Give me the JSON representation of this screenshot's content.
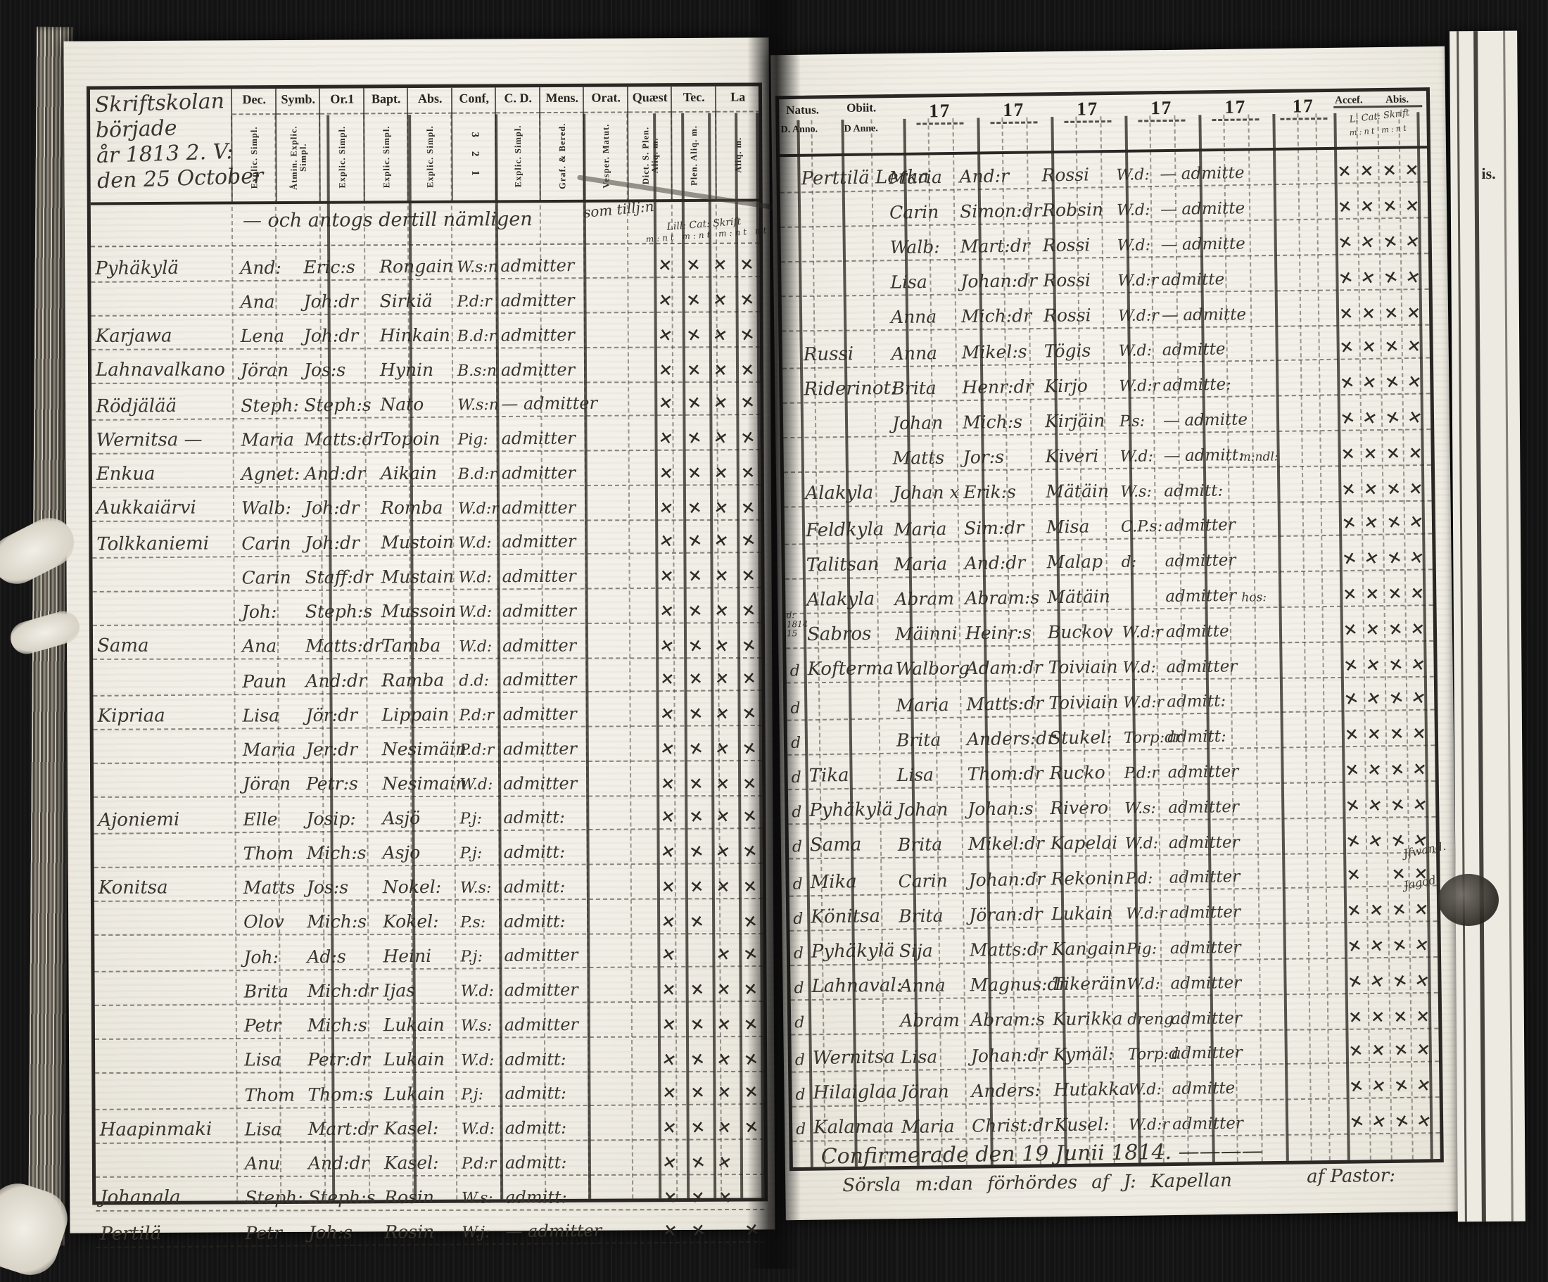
{
  "scan": {
    "background_color": "#131313",
    "paper_color": "#f3f1e9",
    "ink_color": "#39352e",
    "print_color": "#262320"
  },
  "left_page": {
    "margin_title": [
      "Skriftskolan",
      "började",
      "år 1813 2. V:",
      "den 25 October"
    ],
    "intro_line": "— och antogs dertill nämligen",
    "intro_note": "som tillj:n",
    "marks_caption_line1": "Lill: Cat: Skrift",
    "marks_caption_line2": "m:nt  m:nt  m:nt  nt",
    "columns": [
      {
        "label": "Dec.",
        "sub": "Explic. Simpl."
      },
      {
        "label": "Symb.",
        "sub": "Åtmin. Explic. Simpl."
      },
      {
        "label": "Or.1",
        "sub": "Explic. Simpl."
      },
      {
        "label": "Bapt.",
        "sub": "Explic. Simpl."
      },
      {
        "label": "Abs.",
        "sub": "Explic. Simpl."
      },
      {
        "label": "Conf,",
        "sub": "3 2 1"
      },
      {
        "label": "C. D.",
        "sub": "Explic. Simpl."
      },
      {
        "label": "Mens.",
        "sub": "Graf. & Bered."
      },
      {
        "label": "Orat.",
        "sub": "Vesper. Matut."
      },
      {
        "label": "Quæst",
        "sub": "Dict. S. Plen. Aliq. m."
      },
      {
        "label": "Tec.",
        "sub": "Plen. Aliq. m."
      },
      {
        "label": "La",
        "sub": "Aliq. m."
      }
    ],
    "rows": [
      {
        "place": "Pyhäkylä",
        "first": "And:",
        "patron": "Eric:s",
        "surname": "Rongain",
        "status": "W.s:n",
        "admitted": "admitter",
        "marks": [
          "×",
          "×",
          "×",
          "×"
        ]
      },
      {
        "place": "",
        "first": "Ana",
        "patron": "Joh:dr",
        "surname": "Sirkiä",
        "status": "P.d:r",
        "admitted": "admitter",
        "marks": [
          "×",
          "×",
          "×",
          "×"
        ]
      },
      {
        "place": "Karjawa",
        "first": "Lena",
        "patron": "Joh:dr",
        "surname": "Hinkain",
        "status": "B.d:r",
        "admitted": "admitter",
        "marks": [
          "×",
          "×",
          "×",
          "×"
        ]
      },
      {
        "place": "Lahnavalkano",
        "first": "Jöran",
        "patron": "Jos:s",
        "surname": "Hynin",
        "status": "B.s:n",
        "admitted": "admitter",
        "marks": [
          "×",
          "×",
          "×",
          "×"
        ]
      },
      {
        "place": "Rödjälää",
        "first": "Steph:",
        "patron": "Steph:s",
        "surname": "Nato",
        "status": "W.s:n",
        "admitted": "— admitter",
        "marks": [
          "×",
          "×",
          "×",
          "×"
        ]
      },
      {
        "place": "Wernitsa —",
        "first": "Maria",
        "patron": "Matts:dr",
        "surname": "Topoin",
        "status": "Pig:",
        "admitted": "admitter",
        "marks": [
          "×",
          "×",
          "×",
          "×"
        ]
      },
      {
        "place": "Enkua",
        "first": "Agnet:",
        "patron": "And:dr",
        "surname": "Aikain",
        "status": "B.d:r",
        "admitted": "admitter",
        "marks": [
          "×",
          "×",
          "×",
          "×"
        ]
      },
      {
        "place": "Aukkaiärvi",
        "first": "Walb:",
        "patron": "Joh:dr",
        "surname": "Romba",
        "status": "W.d:r",
        "admitted": "admitter",
        "marks": [
          "×",
          "×",
          "×",
          "×"
        ]
      },
      {
        "place": "Tolkkaniemi",
        "first": "Carin",
        "patron": "Joh:dr",
        "surname": "Mustoin",
        "status": "W.d:",
        "admitted": "admitter",
        "marks": [
          "×",
          "×",
          "×",
          "×"
        ]
      },
      {
        "place": "",
        "first": "Carin",
        "patron": "Staff:dr",
        "surname": "Mustain",
        "status": "W.d:",
        "admitted": "admitter",
        "marks": [
          "×",
          "×",
          "×",
          "×"
        ]
      },
      {
        "place": "",
        "first": "Joh:",
        "patron": "Steph:s",
        "surname": "Mussoin",
        "status": "W.d:",
        "admitted": "admitter",
        "marks": [
          "×",
          "×",
          "×",
          "×"
        ]
      },
      {
        "place": "Sama",
        "first": "Ana",
        "patron": "Matts:dr",
        "surname": "Tamba",
        "status": "W.d:",
        "admitted": "admitter",
        "marks": [
          "×",
          "×",
          "×",
          "×"
        ]
      },
      {
        "place": "",
        "first": "Paun",
        "patron": "And:dr",
        "surname": "Ramba",
        "status": "d.d:",
        "admitted": "admitter",
        "marks": [
          "×",
          "×",
          "×",
          "×"
        ]
      },
      {
        "place": "Kipriaa",
        "first": "Lisa",
        "patron": "Jör:dr",
        "surname": "Lippain",
        "status": "P.d:r",
        "admitted": "admitter",
        "marks": [
          "×",
          "×",
          "×",
          "×"
        ]
      },
      {
        "place": "",
        "first": "Maria",
        "patron": "Jer:dr",
        "surname": "Nesimäin",
        "status": "P.d:r",
        "admitted": "admitter",
        "marks": [
          "×",
          "×",
          "×",
          "×"
        ]
      },
      {
        "place": "",
        "first": "Jöran",
        "patron": "Petr:s",
        "surname": "Nesimain",
        "status": "W.d:",
        "admitted": "admitter",
        "marks": [
          "×",
          "×",
          "×",
          "×"
        ]
      },
      {
        "place": "Ajoniemi",
        "first": "Elle",
        "patron": "Josip:",
        "surname": "Asjö",
        "status": "P.j:",
        "admitted": "admitt:",
        "marks": [
          "×",
          "×",
          "×",
          "×"
        ]
      },
      {
        "place": "",
        "first": "Thom",
        "patron": "Mich:s",
        "surname": "Asjo",
        "status": "P.j:",
        "admitted": "admitt:",
        "marks": [
          "×",
          "×",
          "×",
          "×"
        ]
      },
      {
        "place": "Konitsa",
        "first": "Matts",
        "patron": "Jos:s",
        "surname": "Nokel:",
        "status": "W.s:",
        "admitted": "admitt:",
        "marks": [
          "×",
          "×",
          "×",
          "×"
        ]
      },
      {
        "place": "",
        "first": "Olov",
        "patron": "Mich:s",
        "surname": "Kokel:",
        "status": "P.s:",
        "admitted": "admitt:",
        "marks": [
          "×",
          "×",
          "",
          "×"
        ]
      },
      {
        "place": "",
        "first": "Joh:",
        "patron": "Ad:s",
        "surname": "Heini",
        "status": "P.j:",
        "admitted": "admitter",
        "marks": [
          "×",
          "",
          "×",
          "×"
        ]
      },
      {
        "place": "",
        "first": "Brita",
        "patron": "Mich:dr",
        "surname": "Ijas",
        "status": "W.d:",
        "admitted": "admitter",
        "marks": [
          "×",
          "×",
          "×",
          "×"
        ]
      },
      {
        "place": "",
        "first": "Petr",
        "patron": "Mich:s",
        "surname": "Lukain",
        "status": "W.s:",
        "admitted": "admitter",
        "marks": [
          "×",
          "×",
          "×",
          "×"
        ]
      },
      {
        "place": "",
        "first": "Lisa",
        "patron": "Petr:dr",
        "surname": "Lukain",
        "status": "W.d:",
        "admitted": "admitt:",
        "marks": [
          "×",
          "×",
          "×",
          "×"
        ]
      },
      {
        "place": "",
        "first": "Thom",
        "patron": "Thom:s",
        "surname": "Lukain",
        "status": "P.j:",
        "admitted": "admitt:",
        "marks": [
          "×",
          "×",
          "×",
          "×"
        ]
      },
      {
        "place": "Haapinmaki",
        "first": "Lisa",
        "patron": "Mart:dr",
        "surname": "Kasel:",
        "status": "W.d:",
        "admitted": "admitt:",
        "marks": [
          "×",
          "×",
          "×",
          "×"
        ]
      },
      {
        "place": "",
        "first": "Anu",
        "patron": "And:dr",
        "surname": "Kasel:",
        "status": "P.d:r",
        "admitted": "admitt:",
        "marks": [
          "×",
          "×",
          "×",
          ""
        ]
      },
      {
        "place": "Johanala",
        "first": "Steph:",
        "patron": "Steph:s",
        "surname": "Rosin",
        "status": "W.s:",
        "admitted": "admitt:",
        "marks": [
          "×",
          "×",
          "×",
          ""
        ]
      },
      {
        "place": "Pertilä",
        "first": "Petr",
        "patron": "Joh:s",
        "surname": "Rosin",
        "status": "W.j:",
        "admitted": "— admitter",
        "marks": [
          "×",
          "×",
          "",
          "×"
        ]
      }
    ]
  },
  "right_page": {
    "header": {
      "natus": "Natus.",
      "natus_sub": "D.  Anno.",
      "obiit": "Obiit.",
      "obiit_sub": "D  Anne.",
      "years": [
        "17",
        "17",
        "17",
        "17",
        "17",
        "17"
      ],
      "accessit": "Accef.",
      "abiit": "Abis.",
      "next_page_fragment": "is."
    },
    "marks_caption_line1": "L: Cat: Skrift",
    "marks_caption_line2": "m:nt  m:nt",
    "rows": [
      {
        "ditto": "",
        "place": "Perttilä Lerka",
        "first": "Maria",
        "patron": "And:r",
        "surname": "Rossi",
        "status": "W.d:",
        "admitted": "— admitte",
        "note": "",
        "margin": "",
        "marks": [
          "×",
          "×",
          "×",
          "×"
        ]
      },
      {
        "ditto": "",
        "place": "",
        "first": "Carin",
        "patron": "Simon:dr",
        "surname": "Robsin",
        "status": "W.d:",
        "admitted": "— admitte",
        "note": "",
        "margin": "",
        "marks": [
          "×",
          "×",
          "×",
          "×"
        ]
      },
      {
        "ditto": "",
        "place": "",
        "first": "Walb:",
        "patron": "Mart:dr",
        "surname": "Rossi",
        "status": "W.d:",
        "admitted": "— admitte",
        "note": "",
        "margin": "",
        "marks": [
          "×",
          "×",
          "×",
          "×"
        ]
      },
      {
        "ditto": "",
        "place": "",
        "first": "Lisa",
        "patron": "Johan:dr",
        "surname": "Rossi",
        "status": "W.d:r",
        "admitted": "admitte",
        "note": "",
        "margin": "",
        "marks": [
          "×",
          "×",
          "×",
          "×"
        ]
      },
      {
        "ditto": "",
        "place": "",
        "first": "Anna",
        "patron": "Mich:dr",
        "surname": "Rossi",
        "status": "W.d:r",
        "admitted": "— admitte",
        "note": "",
        "margin": "",
        "marks": [
          "×",
          "×",
          "×",
          "×"
        ]
      },
      {
        "ditto": "",
        "place": "Russi",
        "first": "Anna",
        "patron": "Mikel:s",
        "surname": "Tögis",
        "status": "W.d:",
        "admitted": "admitte",
        "note": "",
        "margin": "",
        "marks": [
          "×",
          "×",
          "×",
          "×"
        ]
      },
      {
        "ditto": "",
        "place": "Riderinot:",
        "first": "Brita",
        "patron": "Henr:dr",
        "surname": "Kirjo",
        "status": "W.d:r",
        "admitted": "admitte:",
        "note": "",
        "margin": "",
        "marks": [
          "×",
          "×",
          "×",
          "×"
        ]
      },
      {
        "ditto": "",
        "place": "",
        "first": "Johan",
        "patron": "Mich:s",
        "surname": "Kirjäin",
        "status": "P.s:",
        "admitted": "— admitte",
        "note": "",
        "margin": "",
        "marks": [
          "×",
          "×",
          "×",
          "×"
        ]
      },
      {
        "ditto": "",
        "place": "",
        "first": "Matts",
        "patron": "Jor:s",
        "surname": "Kiveri",
        "status": "W.d:",
        "admitted": "— admitt:",
        "note": "m:ndl:",
        "margin": "",
        "marks": [
          "×",
          "×",
          "×",
          "×"
        ]
      },
      {
        "ditto": "",
        "place": "Alakyla",
        "first": "Johan x",
        "patron": "Erik:s",
        "surname": "Mätäin",
        "status": "W.s:",
        "admitted": "admitt:",
        "note": "",
        "margin": "",
        "marks": [
          "×",
          "×",
          "×",
          "×"
        ]
      },
      {
        "ditto": "",
        "place": "Feldkyla",
        "first": "Maria",
        "patron": "Sim:dr",
        "surname": "Misa",
        "status": "C.P.s:",
        "admitted": "admitter",
        "note": "",
        "margin": "",
        "marks": [
          "×",
          "×",
          "×",
          "×"
        ]
      },
      {
        "ditto": "",
        "place": "Talitsan",
        "first": "Maria",
        "patron": "And:dr",
        "surname": "Malap",
        "status": "d:",
        "admitted": "admitter",
        "note": "",
        "margin": "",
        "marks": [
          "×",
          "×",
          "×",
          "×"
        ]
      },
      {
        "ditto": "",
        "place": "Alakyla",
        "first": "Abram",
        "patron": "Abram:s",
        "surname": "Mätäin",
        "status": "",
        "admitted": "admitter",
        "note": "hos:",
        "margin": "",
        "marks": [
          "×",
          "×",
          "×",
          "×"
        ]
      },
      {
        "ditto": "",
        "place": "Sabros",
        "first": "Mäinni",
        "patron": "Heinr:s",
        "surname": "Buckov",
        "status": "W.d:r",
        "admitted": "admitte",
        "note": "",
        "margin": "d: 1814 15",
        "marks": [
          "×",
          "×",
          "×",
          "×"
        ]
      },
      {
        "ditto": "d",
        "place": "Kofterma",
        "first": "Walborg",
        "patron": "Adam:dr",
        "surname": "Toiviain",
        "status": "W.d:",
        "admitted": "admitter",
        "note": "",
        "margin": "",
        "marks": [
          "×",
          "×",
          "×",
          "×"
        ]
      },
      {
        "ditto": "d",
        "place": "",
        "first": "Maria",
        "patron": "Matts:dr",
        "surname": "Toiviain",
        "status": "W.d:r",
        "admitted": "admitt:",
        "note": "",
        "margin": "",
        "marks": [
          "×",
          "×",
          "×",
          "×"
        ]
      },
      {
        "ditto": "d",
        "place": "",
        "first": "Brita",
        "patron": "Anders:dr",
        "surname": "Stukel:",
        "status": "Torp:dr",
        "admitted": "admitt:",
        "note": "",
        "margin": "",
        "marks": [
          "×",
          "×",
          "×",
          "×"
        ]
      },
      {
        "ditto": "d",
        "place": "Tika",
        "first": "Lisa",
        "patron": "Thom:dr",
        "surname": "Rucko",
        "status": "P.d:r",
        "admitted": "admitter",
        "note": "",
        "margin": "",
        "marks": [
          "×",
          "×",
          "×",
          "×"
        ]
      },
      {
        "ditto": "d",
        "place": "Pyhäkylä",
        "first": "Johan",
        "patron": "Johan:s",
        "surname": "Rivero",
        "status": "W.s:",
        "admitted": "admitter",
        "note": "",
        "margin": "",
        "marks": [
          "×",
          "×",
          "×",
          "×"
        ]
      },
      {
        "ditto": "d",
        "place": "Sama",
        "first": "Brita",
        "patron": "Mikel:dr",
        "surname": "Kapelai",
        "status": "W.d:",
        "admitted": "admitter",
        "note": "",
        "margin": "",
        "marks": [
          "×",
          "×",
          "×",
          "×"
        ]
      },
      {
        "ditto": "d",
        "place": "Mika",
        "first": "Carin",
        "patron": "Johan:dr",
        "surname": "Rekonin",
        "status": "P.d:",
        "admitted": "admitter",
        "note": "",
        "margin": "",
        "marks": [
          "×",
          "",
          "×",
          "×"
        ]
      },
      {
        "ditto": "d",
        "place": "Könitsa",
        "first": "Brita",
        "patron": "Jöran:dr",
        "surname": "Lukain",
        "status": "W.d:r",
        "admitted": "admitter",
        "note": "",
        "margin": "",
        "marks": [
          "×",
          "×",
          "×",
          "×"
        ]
      },
      {
        "ditto": "d",
        "place": "Pyhäkylä",
        "first": "Sija",
        "patron": "Matts:dr",
        "surname": "Kangain",
        "status": "Pig:",
        "admitted": "admitter",
        "note": "",
        "margin": "",
        "marks": [
          "×",
          "×",
          "×",
          "×"
        ]
      },
      {
        "ditto": "d",
        "place": "Lahnaval:",
        "first": "Anna",
        "patron": "Magnus:dr",
        "surname": "Tikeräin",
        "status": "W.d:",
        "admitted": "admitter",
        "note": "",
        "margin": "",
        "marks": [
          "×",
          "×",
          "×",
          "×"
        ]
      },
      {
        "ditto": "d",
        "place": "",
        "first": "Abram",
        "patron": "Abram:s",
        "surname": "Kurikka",
        "status": "dreng",
        "admitted": "admitter",
        "note": "",
        "margin": "",
        "marks": [
          "×",
          "×",
          "×",
          "×"
        ]
      },
      {
        "ditto": "d",
        "place": "Wernitsa",
        "first": "Lisa",
        "patron": "Johan:dr",
        "surname": "Kymäl:",
        "status": "Torp:d",
        "admitted": "admitter",
        "note": "",
        "margin": "",
        "marks": [
          "×",
          "×",
          "×",
          "×"
        ]
      },
      {
        "ditto": "d",
        "place": "Hilaiglaa",
        "first": "Jöran",
        "patron": "Anders:",
        "surname": "Hutakka",
        "status": "W.d:",
        "admitted": "admitte",
        "note": "",
        "margin": "",
        "marks": [
          "×",
          "×",
          "×",
          "×"
        ]
      },
      {
        "ditto": "d",
        "place": "Kalamaa",
        "first": "Maria",
        "patron": "Christ:dr",
        "surname": "Kusel:",
        "status": "W.d:r",
        "admitted": "admitter",
        "note": "",
        "margin": "",
        "marks": [
          "×",
          "×",
          "×",
          "×"
        ]
      }
    ],
    "edge_notes": [
      "Jfwand.",
      "Jagod."
    ],
    "footer_line1": "Confirmerade den 19 Junii 1814. ————",
    "footer_line2": "Sörsla m:dan förhördes af J: Kapellan",
    "footer_line2_right": "af Pastor:"
  }
}
